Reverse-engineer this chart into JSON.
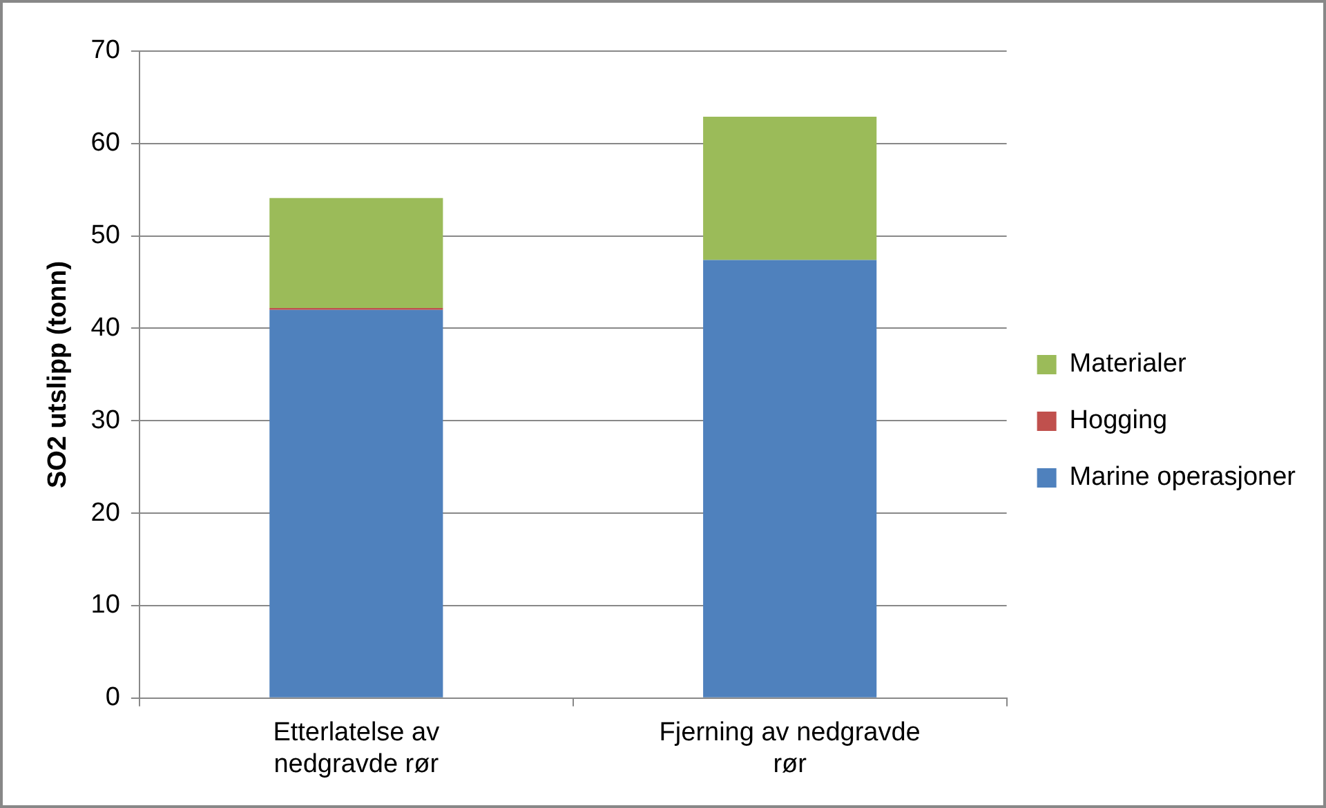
{
  "chart_data": {
    "type": "bar",
    "stacked": true,
    "ylabel": "SO2 utslipp (tonn)",
    "categories": [
      "Etterlatelse av nedgravde rør",
      "Fjerning av nedgravde rør"
    ],
    "series": [
      {
        "name": "Marine operasjoner",
        "color": "#4f81bd",
        "values": [
          42,
          47.4
        ]
      },
      {
        "name": "Hogging",
        "color": "#c0504d",
        "values": [
          0.2,
          0
        ]
      },
      {
        "name": "Materialer",
        "color": "#9bbb59",
        "values": [
          11.9,
          15.5
        ]
      }
    ],
    "ylim": [
      0,
      70
    ],
    "yticks": [
      0,
      10,
      20,
      30,
      40,
      50,
      60,
      70
    ],
    "grid": "y",
    "legend": "right"
  }
}
